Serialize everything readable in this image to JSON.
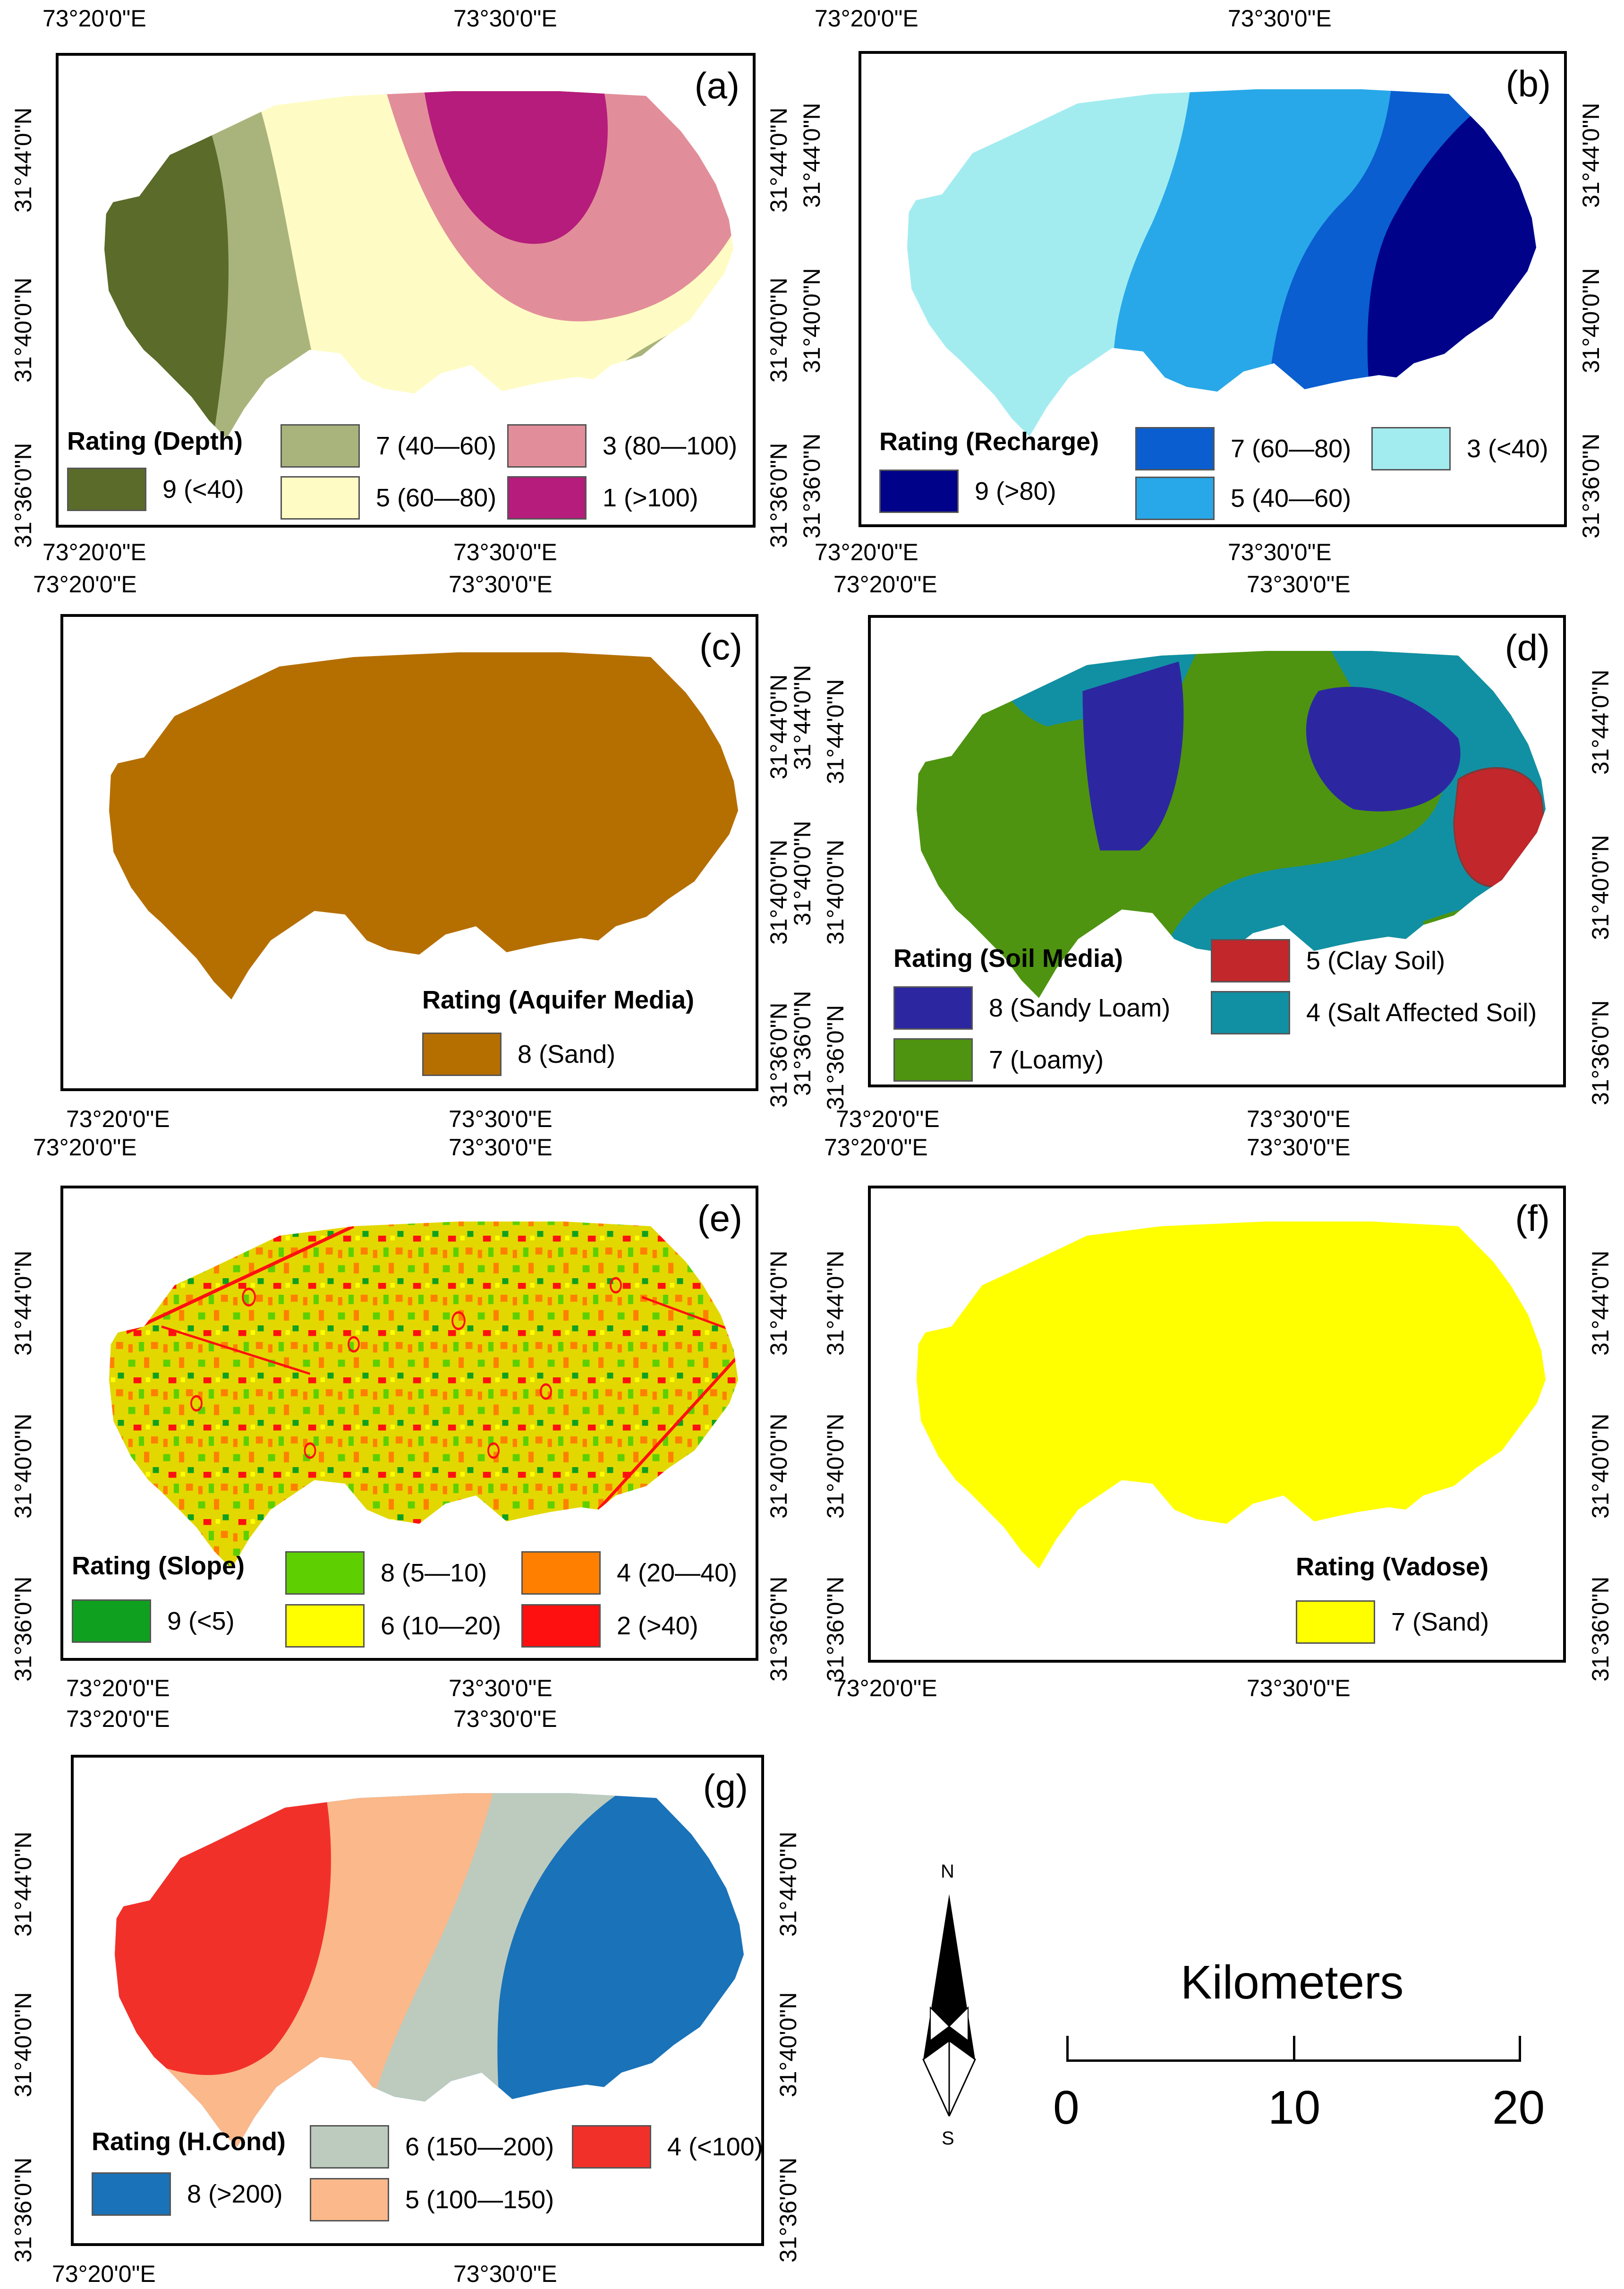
{
  "coords": {
    "lon_left": "73°20'0\"E",
    "lon_right": "73°30'0\"E",
    "lat_top": "31°44'0\"N",
    "lat_mid": "31°40'0\"N",
    "lat_bot": "31°36'0\"N"
  },
  "panels": {
    "a": {
      "label": "(a)",
      "legend_title": "Rating (Depth)",
      "items": [
        {
          "label": "9 (<40)",
          "color": "#5a6b2a"
        },
        {
          "label": "7 (40—60)",
          "color": "#a9b47c"
        },
        {
          "label": "5 (60—80)",
          "color": "#fefcc4"
        },
        {
          "label": "3 (80—100)",
          "color": "#e28e9a"
        },
        {
          "label": "1 (>100)",
          "color": "#b51c7b"
        }
      ]
    },
    "b": {
      "label": "(b)",
      "legend_title": "Rating (Recharge)",
      "items": [
        {
          "label": "9 (>80)",
          "color": "#00038a"
        },
        {
          "label": "7 (60—80)",
          "color": "#0a5ed0"
        },
        {
          "label": "5 (40—60)",
          "color": "#28a8e8"
        },
        {
          "label": "3 (<40)",
          "color": "#a2ecf0"
        }
      ]
    },
    "c": {
      "label": "(c)",
      "legend_title": "Rating (Aquifer Media)",
      "items": [
        {
          "label": "8 (Sand)",
          "color": "#b56f00"
        }
      ]
    },
    "d": {
      "label": "(d)",
      "legend_title": "Rating (Soil Media)",
      "items": [
        {
          "label": "8 (Sandy Loam)",
          "color": "#2c27a0"
        },
        {
          "label": "7 (Loamy)",
          "color": "#4e9410"
        },
        {
          "label": "5 (Clay Soil)",
          "color": "#c2272b"
        },
        {
          "label": "4 (Salt Affected Soil)",
          "color": "#1190a4"
        }
      ]
    },
    "e": {
      "label": "(e)",
      "legend_title": "Rating (Slope)",
      "items": [
        {
          "label": "9 (<5)",
          "color": "#10a020"
        },
        {
          "label": "8 (5—10)",
          "color": "#5ecf00"
        },
        {
          "label": "6 (10—20)",
          "color": "#ffff00"
        },
        {
          "label": "4 (20—40)",
          "color": "#ff8000"
        },
        {
          "label": "2 (>40)",
          "color": "#ff1010"
        }
      ]
    },
    "f": {
      "label": "(f)",
      "legend_title": "Rating (Vadose)",
      "items": [
        {
          "label": "7 (Sand)",
          "color": "#ffff00"
        }
      ]
    },
    "g": {
      "label": "(g)",
      "legend_title": "Rating (H.Cond)",
      "items": [
        {
          "label": "8 (>200)",
          "color": "#1a72b8"
        },
        {
          "label": "6 (150—200)",
          "color": "#bccbbe"
        },
        {
          "label": "5 (100—150)",
          "color": "#fbb88a"
        },
        {
          "label": "4 (<100)",
          "color": "#f2302a"
        }
      ]
    }
  },
  "north_arrow": {
    "n": "N",
    "s": "S"
  },
  "scale_bar": {
    "title": "Kilometers",
    "ticks": [
      "0",
      "10",
      "20"
    ]
  }
}
